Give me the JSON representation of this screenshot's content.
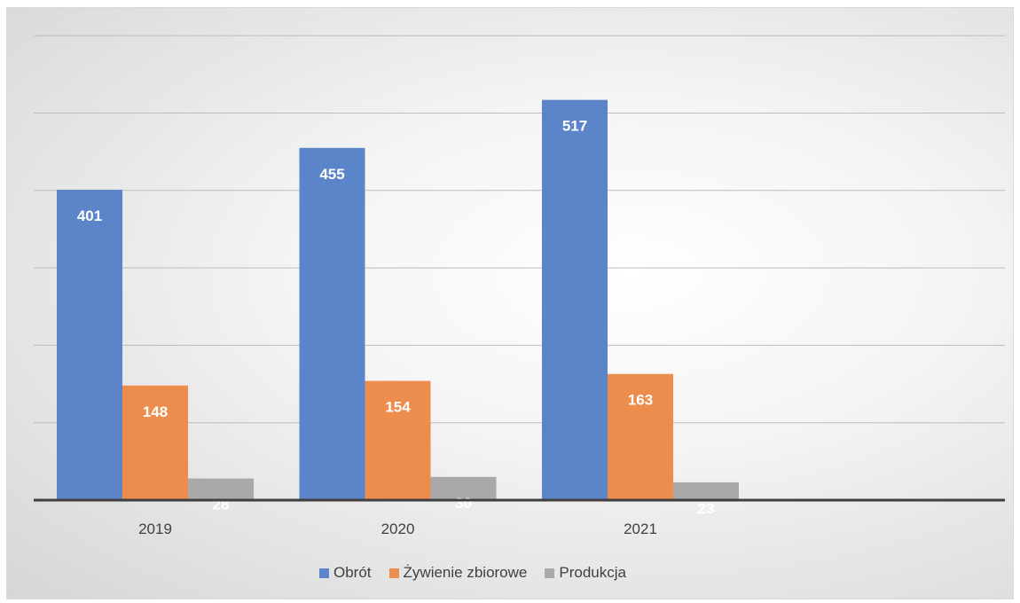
{
  "chart_data": {
    "type": "bar",
    "categories": [
      "2019",
      "2020",
      "2021"
    ],
    "series": [
      {
        "name": "Obrót",
        "values": [
          401,
          455,
          517
        ],
        "color": "#5b84c9"
      },
      {
        "name": "Żywienie zbiorowe",
        "values": [
          148,
          154,
          163
        ],
        "color": "#ed8d4d"
      },
      {
        "name": "Produkcja",
        "values": [
          28,
          30,
          23
        ],
        "color": "#a9a9a9"
      }
    ],
    "ylim": [
      0,
      600
    ],
    "grid": true,
    "y_axis_labels_visible": false,
    "legend_position": "bottom"
  }
}
